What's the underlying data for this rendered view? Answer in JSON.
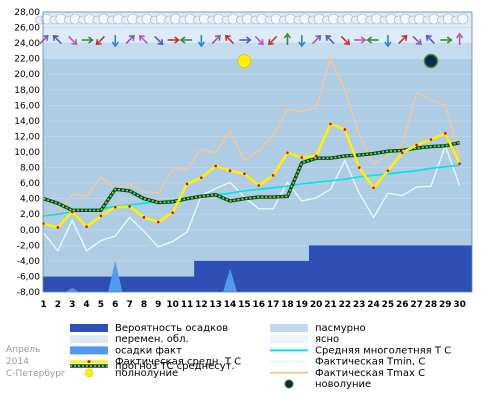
{
  "chart_data": {
    "type": "line",
    "x": [
      1,
      2,
      3,
      4,
      5,
      6,
      7,
      8,
      9,
      10,
      11,
      12,
      13,
      14,
      15,
      16,
      17,
      18,
      19,
      20,
      21,
      22,
      23,
      24,
      25,
      26,
      27,
      28,
      29,
      30
    ],
    "ylim": [
      -8,
      28
    ],
    "y_ticks": [
      "28,00",
      "26,00",
      "24,00",
      "22,00",
      "20,00",
      "18,00",
      "16,00",
      "14,00",
      "12,00",
      "10,00",
      "8,00",
      "6,00",
      "4,00",
      "2,00",
      "0,00",
      "-2,00",
      "-4,00",
      "-6,00",
      "-8,00"
    ],
    "series": [
      {
        "name": "Фактическая средн. Т С",
        "color": "#ffef00",
        "values": [
          0.8,
          0.3,
          2.3,
          0.4,
          1.8,
          2.9,
          3.0,
          1.6,
          1.0,
          2.2,
          5.9,
          6.7,
          8.2,
          7.6,
          7.2,
          5.7,
          7.0,
          9.9,
          9.3,
          9.5,
          13.6,
          12.9,
          8.0,
          5.4,
          7.6,
          9.9,
          10.9,
          11.6,
          12.4,
          8.5
        ]
      },
      {
        "name": "Фактическая Tmin, С",
        "color": "#e6fafa",
        "values": [
          -0.4,
          -2.7,
          1.2,
          -2.7,
          -1.4,
          -0.8,
          1.6,
          -0.2,
          -2.2,
          -1.5,
          -0.3,
          4.4,
          5.3,
          6.1,
          4.2,
          2.7,
          2.7,
          6.1,
          3.7,
          4.1,
          5.2,
          8.9,
          4.7,
          1.6,
          4.7,
          4.4,
          5.5,
          5.6,
          10.8,
          5.7
        ]
      },
      {
        "name": "Фактическая Tmax C",
        "color": "#f5c79a",
        "values": [
          2.0,
          2.0,
          4.6,
          4.3,
          6.8,
          5.2,
          5.9,
          4.9,
          4.7,
          7.8,
          7.8,
          10.4,
          9.9,
          12.7,
          8.9,
          10.2,
          12.1,
          15.5,
          15.2,
          15.7,
          22.0,
          18.0,
          12.2,
          8.5,
          9.5,
          10.9,
          17.7,
          16.7,
          16.0,
          9.5
        ]
      },
      {
        "name": "Средняя многолетняя Т С",
        "color": "#00e5e5",
        "values": [
          1.8,
          2.0,
          2.3,
          2.5,
          2.7,
          3.0,
          3.2,
          3.4,
          3.6,
          3.8,
          4.1,
          4.3,
          4.5,
          4.7,
          5.0,
          5.2,
          5.4,
          5.6,
          5.9,
          6.1,
          6.3,
          6.5,
          6.8,
          7.0,
          7.2,
          7.4,
          7.6,
          7.9,
          8.1,
          8.3
        ]
      },
      {
        "name": "прогноз ТС среднесут.",
        "color": "#2e8b2e",
        "values": [
          4.0,
          3.4,
          2.5,
          2.5,
          2.5,
          5.2,
          5.0,
          4.0,
          3.5,
          3.6,
          4.0,
          4.3,
          4.5,
          3.7,
          4.0,
          4.2,
          4.2,
          4.3,
          8.6,
          9.2,
          9.2,
          9.5,
          9.6,
          9.8,
          10.1,
          10.2,
          10.5,
          10.7,
          10.8,
          11.2
        ]
      }
    ],
    "precip_prob": [
      10,
      10,
      10,
      10,
      10,
      10,
      10,
      10,
      10,
      10,
      10,
      20,
      20,
      20,
      20,
      20,
      20,
      20,
      20,
      30,
      30,
      30,
      30,
      30,
      30,
      30,
      30,
      30,
      30,
      30
    ],
    "precip_fact": [
      0,
      0,
      0.5,
      0,
      0,
      0,
      0,
      0,
      0,
      0,
      0,
      0,
      0,
      3,
      0,
      0,
      0,
      0,
      0,
      0,
      0,
      0,
      0,
      0,
      0,
      0,
      0,
      0,
      0,
      0
    ],
    "precip_fact_mark": [
      [
        5.5,
        0
      ],
      [
        6,
        4
      ],
      [
        6.5,
        0
      ]
    ],
    "moon_full_day": 15,
    "moon_new_day": 28,
    "legend": [
      {
        "label": "Вероятность осадков",
        "color": "#2e4fb5",
        "kind": "box"
      },
      {
        "label": "перемен. обл.",
        "color": "#dfe9f5",
        "kind": "box"
      },
      {
        "label": "осадки факт",
        "color": "#5599ee",
        "kind": "box"
      },
      {
        "label": "Фактическая средн. Т С",
        "color": "#ffef00",
        "kind": "yline"
      },
      {
        "label": "полнолуние",
        "color": "#ffef00",
        "kind": "fullmoon"
      },
      {
        "label": "пасмурно",
        "color": "#c6d8ec",
        "kind": "box"
      },
      {
        "label": "ясно",
        "color": "#eef6fc",
        "kind": "box"
      },
      {
        "label": "Средняя многолетняя Т С",
        "color": "#00e5e5",
        "kind": "line"
      },
      {
        "label": "Фактическая Tmin, С",
        "color": "#e6fafa",
        "kind": "line"
      },
      {
        "label": "Фактическая Tmax C",
        "color": "#f5c79a",
        "kind": "line"
      },
      {
        "label": "новолуние",
        "color": "#0a2a55",
        "kind": "newmoon"
      }
    ],
    "side_labels": [
      "Апрель",
      "2014",
      "С-Петербург"
    ],
    "weather_icons": [
      "cloud",
      "cloud",
      "cloud",
      "cloud",
      "cloud",
      "cloud",
      "cloud",
      "cloud",
      "cloud",
      "cloud",
      "cloud",
      "cloud",
      "cloud",
      "cloud",
      "cloud",
      "cloud",
      "cloud",
      "cloud",
      "cloud",
      "cloud",
      "cloud",
      "cloud",
      "cloud",
      "cloud",
      "cloud",
      "cloud",
      "cloud",
      "cloud",
      "cloud",
      "cloud"
    ]
  }
}
